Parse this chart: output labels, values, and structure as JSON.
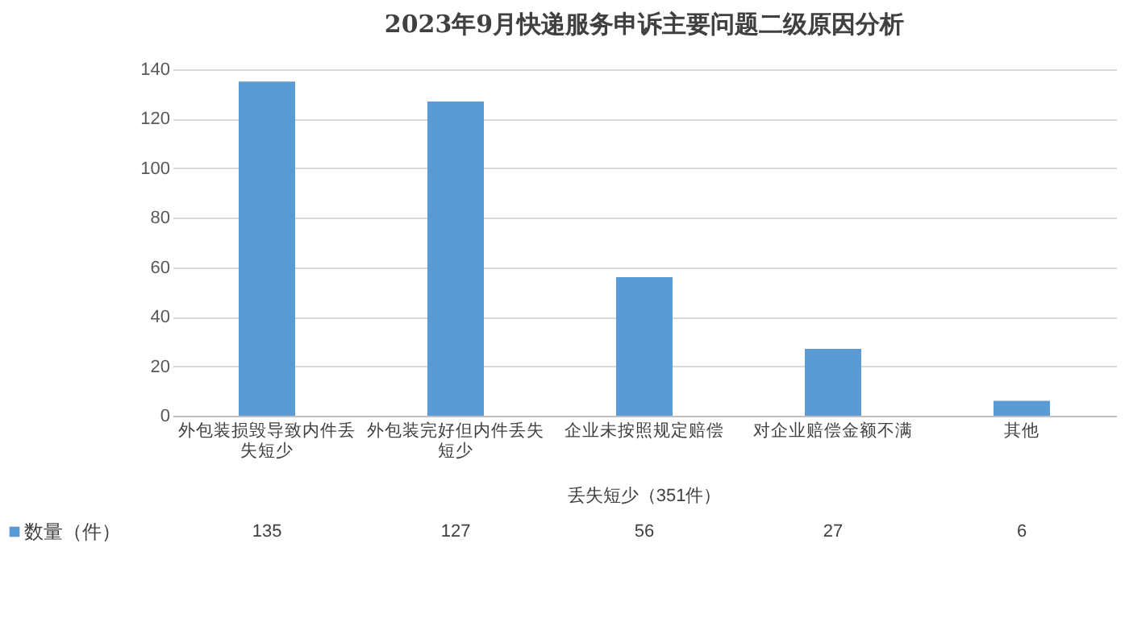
{
  "chart_data": {
    "type": "bar",
    "title": "2023年9月快递服务申诉主要问题二级原因分析",
    "categories": [
      "外包装损毁导致内件丢失短少",
      "外包装完好但内件丢失短少",
      "企业未按照规定赔偿",
      "对企业赔偿金额不满",
      "其他"
    ],
    "series": [
      {
        "name": "数量（件）",
        "color": "#5b9bd5",
        "values": [
          135,
          127,
          56,
          27,
          6
        ]
      }
    ],
    "ylim": [
      0,
      140
    ],
    "yticks": [
      0,
      20,
      40,
      60,
      80,
      100,
      120,
      140
    ],
    "grid": "y",
    "legend": "bottom",
    "data_labels": true,
    "annotations": [
      "丢失短少（351件）"
    ]
  }
}
